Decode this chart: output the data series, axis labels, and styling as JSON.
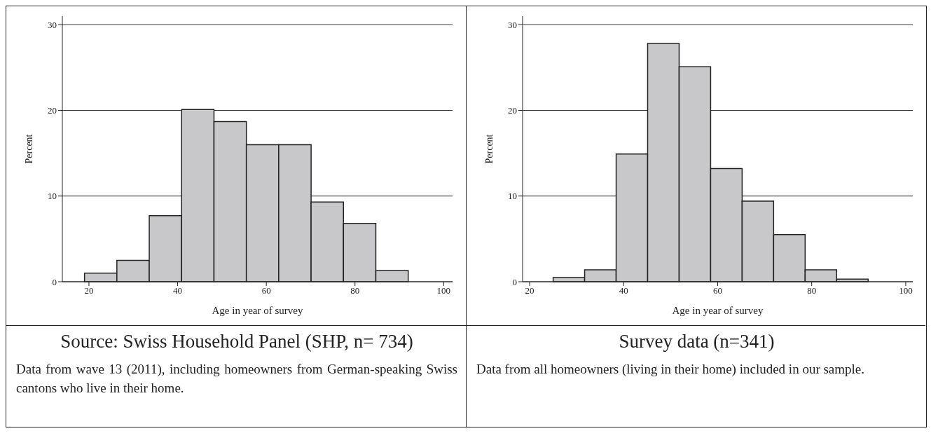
{
  "chart_data": [
    {
      "type": "histogram",
      "title": "Source: Swiss Household Panel (SHP, n= 734)",
      "xlabel": "Age in year of survey",
      "ylabel": "Percent",
      "annotations": [
        "Data from wave 13 (2011), including homeowners from German-speaking Swiss cantons who live in their home."
      ],
      "bins": [
        19,
        26.3,
        33.6,
        40.9,
        48.2,
        55.5,
        62.8,
        70.1,
        77.4,
        84.7,
        92
      ],
      "values": [
        1.0,
        2.5,
        7.7,
        20.1,
        18.7,
        16.0,
        16.0,
        9.3,
        6.8,
        1.3
      ],
      "color": "#c8c8ca",
      "xlim": [
        14,
        102
      ],
      "xticks": [
        20,
        40,
        60,
        80,
        100
      ],
      "ylim": [
        0,
        31
      ],
      "yticks": [
        0,
        10,
        20,
        30
      ],
      "grid": "y"
    },
    {
      "type": "histogram",
      "title": "Survey data  (n=341)",
      "xlabel": "Age in year of survey",
      "ylabel": "Percent",
      "annotations": [
        "Data from all homeowners (living in their home) included in our sample."
      ],
      "bins": [
        25,
        31.7,
        38.4,
        45.1,
        51.8,
        58.5,
        65.2,
        71.9,
        78.6,
        85.3,
        92
      ],
      "values": [
        0.5,
        1.4,
        14.9,
        27.8,
        25.1,
        13.2,
        9.4,
        5.5,
        1.4,
        0.3
      ],
      "color": "#c8c8ca",
      "xlim": [
        18.5,
        101.5
      ],
      "xticks": [
        20,
        40,
        60,
        80,
        100
      ],
      "ylim": [
        0,
        31
      ],
      "yticks": [
        0,
        10,
        20,
        30
      ],
      "grid": "y"
    }
  ]
}
